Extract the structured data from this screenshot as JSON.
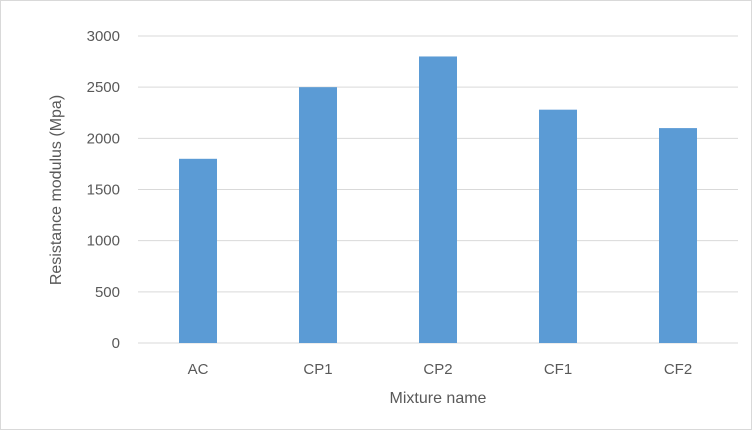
{
  "chart_data": {
    "type": "bar",
    "title": "",
    "xlabel": "Mixture name",
    "ylabel": "Resistance modulus (Mpa)",
    "categories": [
      "AC",
      "CP1",
      "CP2",
      "CF1",
      "CF2"
    ],
    "values": [
      1800,
      2500,
      2800,
      2280,
      2100
    ],
    "ylim": [
      0,
      3000
    ],
    "yticks": [
      0,
      500,
      1000,
      1500,
      2000,
      2500,
      3000
    ],
    "grid": true,
    "legend": "none",
    "bar_color": "#5b9bd5",
    "grid_color": "#d9d9d9",
    "text_color": "#595959"
  }
}
